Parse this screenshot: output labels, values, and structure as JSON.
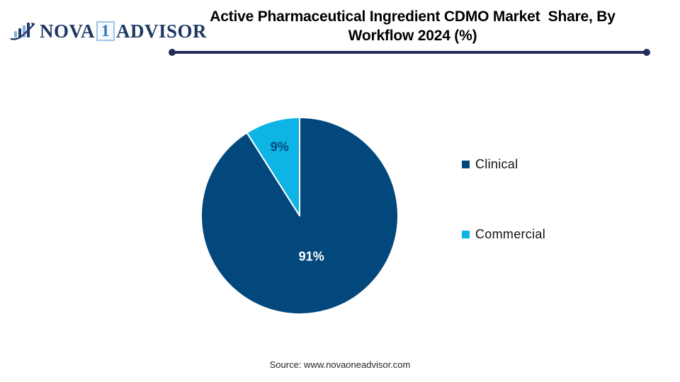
{
  "logo": {
    "part1": "NOVA",
    "part2": "1",
    "part3": "ADVISOR"
  },
  "header": {
    "title": "Active Pharmaceutical Ingredient CDMO Market  Share, By\nWorkflow 2024 (%)",
    "underline_color": "#232d5a"
  },
  "chart_data": {
    "type": "pie",
    "title": "Active Pharmaceutical Ingredient CDMO Market Share, By Workflow 2024 (%)",
    "categories": [
      "Clinical",
      "Commercial"
    ],
    "values": [
      91,
      9
    ],
    "unit": "%",
    "labels": [
      "91%",
      "9%"
    ],
    "colors": [
      "#03487c",
      "#0db4e4"
    ],
    "label_colors": [
      "#ffffff",
      "#03487c"
    ],
    "slice_border_color": "#ffffff",
    "start_angle_deg": 0,
    "direction": "clockwise",
    "label_radius_frac": [
      0.43,
      0.73
    ],
    "legend_position": "right"
  },
  "footer": {
    "source": "Source: www.novaoneadvisor.com"
  }
}
